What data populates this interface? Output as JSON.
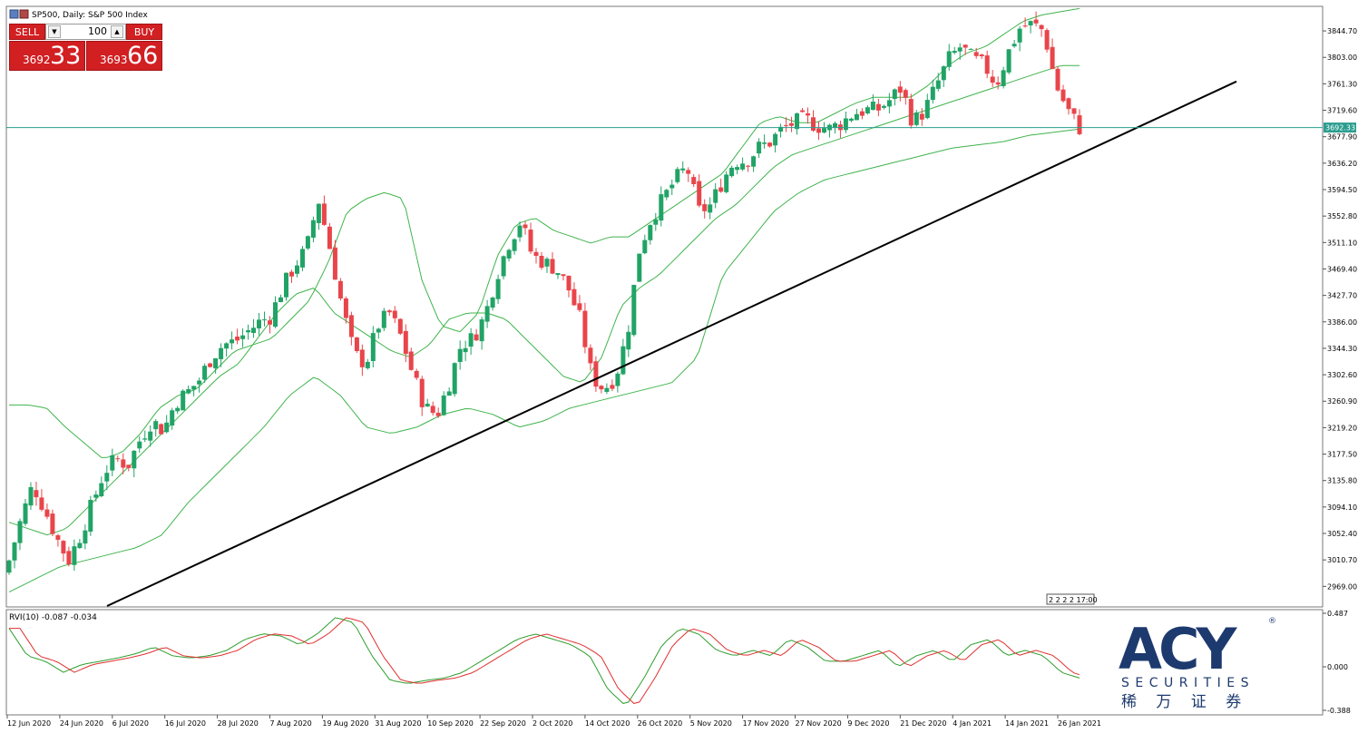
{
  "window": {
    "title": "SP500, Daily:  S&P 500 Index"
  },
  "trade_panel": {
    "sell_label": "SELL",
    "buy_label": "BUY",
    "lot_value": "100",
    "sell_price_small": "3692",
    "sell_price_big": "33",
    "buy_price_small": "3693",
    "buy_price_big": "66"
  },
  "price_axis": {
    "labels": [
      "3844.70",
      "3803.00",
      "3761.30",
      "3719.60",
      "3677.90",
      "3636.20",
      "3594.50",
      "3552.80",
      "3511.10",
      "3469.40",
      "3427.70",
      "3386.00",
      "3344.30",
      "3302.60",
      "3260.90",
      "3219.20",
      "3177.50",
      "3135.80",
      "3094.10",
      "3052.40",
      "3010.70",
      "2969.00"
    ],
    "current_price": "3692.33"
  },
  "indicator": {
    "label": "RVI(10) -0.087 -0.034",
    "scale": [
      "0.487",
      "0.000",
      "-0.388"
    ]
  },
  "time_axis": {
    "labels": [
      "12 Jun 2020",
      "24 Jun 2020",
      "6 Jul 2020",
      "16 Jul 2020",
      "28 Jul 2020",
      "7 Aug 2020",
      "19 Aug 2020",
      "31 Aug 2020",
      "10 Sep 2020",
      "22 Sep 2020",
      "2 Oct 2020",
      "14 Oct 2020",
      "26 Oct 2020",
      "5 Nov 2020",
      "17 Nov 2020",
      "27 Nov 2020",
      "9 Dec 2020",
      "21 Dec 2020",
      "4 Jan 2021",
      "14 Jan 2021",
      "26 Jan 2021"
    ]
  },
  "period_marker": {
    "text": "2 2 2 2 17:00"
  },
  "logo": {
    "main": "ACY",
    "registered": "®",
    "sub": "SECURITIES",
    "chinese": "稀 万 证 券"
  },
  "colors": {
    "bull": "#21a366",
    "bear": "#e8454a",
    "band": "#3fb44c",
    "trend": "#000000",
    "price_line": "#2a9d8f",
    "rvi_main": "#2e9e2e",
    "rvi_signal": "#e03030",
    "trade_red": "#d11f22",
    "logo_blue": "#1d3a6e"
  },
  "chart_data": {
    "type": "candlestick",
    "title": "SP500, Daily:  S&P 500 Index",
    "ylim": [
      2938,
      3882
    ],
    "x": [
      "12 Jun 2020",
      "24 Jun 2020",
      "6 Jul 2020",
      "16 Jul 2020",
      "28 Jul 2020",
      "7 Aug 2020",
      "19 Aug 2020",
      "31 Aug 2020",
      "10 Sep 2020",
      "22 Sep 2020",
      "2 Oct 2020",
      "14 Oct 2020",
      "26 Oct 2020",
      "5 Nov 2020",
      "17 Nov 2020",
      "27 Nov 2020",
      "9 Dec 2020",
      "21 Dec 2020",
      "4 Jan 2021",
      "14 Jan 2021",
      "26 Jan 2021"
    ],
    "close_path": [
      3010,
      3075,
      3130,
      3090,
      3045,
      3010,
      3050,
      3100,
      3150,
      3170,
      3160,
      3200,
      3230,
      3215,
      3260,
      3275,
      3295,
      3330,
      3350,
      3355,
      3370,
      3385,
      3395,
      3440,
      3475,
      3500,
      3580,
      3500,
      3410,
      3335,
      3320,
      3380,
      3400,
      3360,
      3300,
      3250,
      3240,
      3290,
      3350,
      3360,
      3395,
      3460,
      3510,
      3545,
      3490,
      3480,
      3470,
      3440,
      3390,
      3300,
      3280,
      3300,
      3370,
      3500,
      3550,
      3580,
      3610,
      3630,
      3560,
      3570,
      3610,
      3640,
      3640,
      3660,
      3670,
      3690,
      3700,
      3705,
      3695,
      3690,
      3700,
      3715,
      3720,
      3720,
      3735,
      3755,
      3700,
      3720,
      3760,
      3800,
      3820,
      3800,
      3790,
      3760,
      3810,
      3850,
      3855,
      3845,
      3760,
      3720,
      3692
    ],
    "upper_band_path": [
      3255,
      3255,
      3250,
      3220,
      3195,
      3170,
      3180,
      3210,
      3250,
      3270,
      3280,
      3310,
      3340,
      3350,
      3360,
      3390,
      3420,
      3480,
      3560,
      3580,
      3590,
      3580,
      3450,
      3380,
      3370,
      3400,
      3490,
      3540,
      3550,
      3530,
      3520,
      3510,
      3520,
      3520,
      3540,
      3560,
      3580,
      3600,
      3620,
      3660,
      3700,
      3710,
      3700,
      3700,
      3715,
      3730,
      3740,
      3740,
      3740,
      3760,
      3790,
      3810,
      3820,
      3840,
      3860,
      3870,
      3875,
      3880
    ],
    "middle_band_path": [
      3070,
      3060,
      3050,
      3060,
      3090,
      3120,
      3150,
      3180,
      3210,
      3240,
      3270,
      3300,
      3320,
      3360,
      3400,
      3430,
      3440,
      3400,
      3380,
      3360,
      3340,
      3330,
      3350,
      3390,
      3400,
      3400,
      3390,
      3360,
      3330,
      3300,
      3290,
      3330,
      3410,
      3440,
      3460,
      3490,
      3520,
      3550,
      3570,
      3600,
      3630,
      3650,
      3660,
      3670,
      3680,
      3690,
      3700,
      3710,
      3720,
      3730,
      3740,
      3750,
      3760,
      3770,
      3780,
      3790,
      3790
    ],
    "lower_band_path": [
      2960,
      2980,
      3000,
      3010,
      3020,
      3030,
      3050,
      3100,
      3140,
      3180,
      3220,
      3270,
      3300,
      3270,
      3220,
      3210,
      3220,
      3240,
      3250,
      3240,
      3220,
      3230,
      3250,
      3260,
      3270,
      3280,
      3290,
      3330,
      3460,
      3510,
      3560,
      3590,
      3610,
      3620,
      3630,
      3640,
      3650,
      3660,
      3665,
      3670,
      3680,
      3685,
      3690
    ],
    "trendline": {
      "start": [
        "12 Jun 2020",
        2938
      ],
      "end": [
        "4 Feb 2021",
        3765
      ]
    },
    "current_price": 3692.33
  }
}
